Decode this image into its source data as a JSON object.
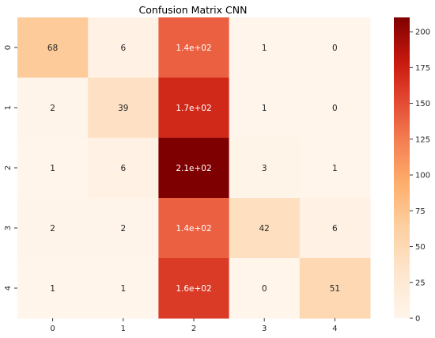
{
  "chart_data": {
    "type": "heatmap",
    "title": "Confusion Matrix CNN",
    "xlabel": "",
    "ylabel": "",
    "x_categories": [
      "0",
      "1",
      "2",
      "3",
      "4"
    ],
    "y_categories": [
      "0",
      "1",
      "2",
      "3",
      "4"
    ],
    "values": [
      [
        68,
        6,
        140,
        1,
        0
      ],
      [
        2,
        39,
        170,
        1,
        0
      ],
      [
        1,
        6,
        210,
        3,
        1
      ],
      [
        2,
        2,
        140,
        42,
        6
      ],
      [
        1,
        1,
        160,
        0,
        51
      ]
    ],
    "cell_labels": [
      [
        "68",
        "6",
        "1.4e+02",
        "1",
        "0"
      ],
      [
        "2",
        "39",
        "1.7e+02",
        "1",
        "0"
      ],
      [
        "1",
        "6",
        "2.1e+02",
        "3",
        "1"
      ],
      [
        "2",
        "2",
        "1.4e+02",
        "42",
        "6"
      ],
      [
        "1",
        "1",
        "1.6e+02",
        "0",
        "51"
      ]
    ],
    "colormap": "OrRd",
    "vmin": 0,
    "vmax": 210,
    "colorbar_ticks": [
      0,
      25,
      50,
      75,
      100,
      125,
      150,
      175,
      200
    ],
    "grid": false
  }
}
